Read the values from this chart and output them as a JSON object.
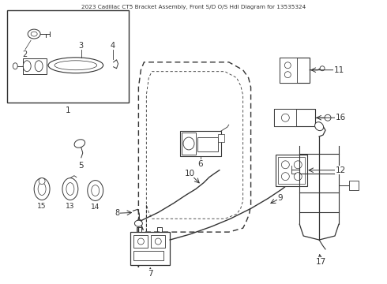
{
  "bg_color": "#ffffff",
  "line_color": "#333333",
  "title": "2023 Cadillac CT5 Bracket Assembly, Front S/D O/S Hdl Diagram for 13535324",
  "figsize": [
    4.9,
    3.6
  ],
  "dpi": 100
}
